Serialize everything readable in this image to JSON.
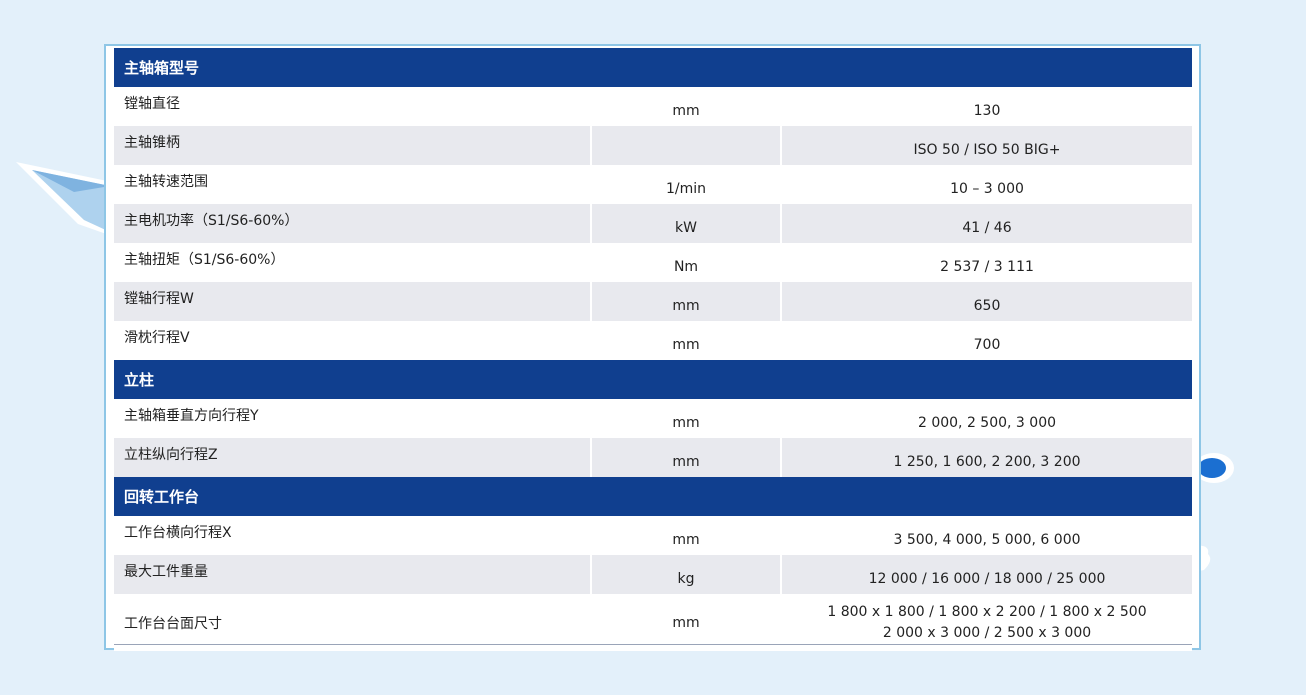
{
  "sections": [
    {
      "title": "主轴箱型号",
      "rows": [
        {
          "label": "镗轴直径",
          "unit": "mm",
          "value": "130"
        },
        {
          "label": "主轴锥柄",
          "unit": "",
          "value": "ISO 50 / ISO 50 BIG+"
        },
        {
          "label": "主轴转速范围",
          "unit": "1/min",
          "value": "10 – 3 000"
        },
        {
          "label": "主电机功率（S1/S6-60%）",
          "unit": "kW",
          "value": "41 / 46"
        },
        {
          "label": "主轴扭矩（S1/S6-60%）",
          "unit": "Nm",
          "value": "2 537 / 3 111"
        },
        {
          "label": "镗轴行程W",
          "unit": "mm",
          "value": "650"
        },
        {
          "label": "滑枕行程V",
          "unit": "mm",
          "value": "700"
        }
      ]
    },
    {
      "title": "立柱",
      "rows": [
        {
          "label": "主轴箱垂直方向行程Y",
          "unit": "mm",
          "value": "2 000, 2 500, 3 000"
        },
        {
          "label": "立柱纵向行程Z",
          "unit": "mm",
          "value": "1 250, 1 600, 2 200, 3 200"
        }
      ]
    },
    {
      "title": "回转工作台",
      "rows": [
        {
          "label": "工作台横向行程X",
          "unit": "mm",
          "value": "3 500, 4 000, 5 000, 6 000"
        },
        {
          "label": "最大工件重量",
          "unit": "kg",
          "value": "12 000 / 16 000 / 18 000 / 25 000"
        },
        {
          "label": "工作台台面尺寸",
          "unit": "mm",
          "value": "1 800 x 1 800 / 1 800 x 2 200 / 1 800 x 2 500",
          "value2": "2 000 x 3 000 / 2 500 x 3 000"
        }
      ]
    }
  ],
  "colors": {
    "header": "#103f8f",
    "zebra": "#e8e9ee",
    "background": "#e3f0fa",
    "frame": "#8ec6e6"
  }
}
